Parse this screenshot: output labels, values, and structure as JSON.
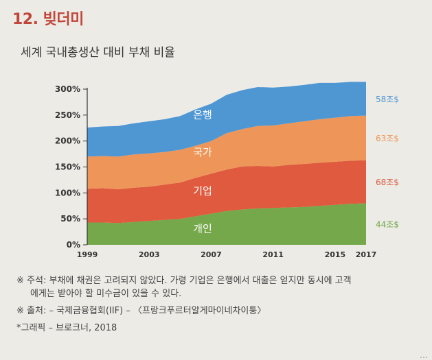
{
  "header": {
    "section_title": "12. 빚더미",
    "chart_title": "세계 국내총생산 대비 부채 비율"
  },
  "chart_data": {
    "type": "area",
    "stacked": true,
    "x": [
      1999,
      2000,
      2001,
      2002,
      2003,
      2004,
      2005,
      2006,
      2007,
      2008,
      2009,
      2010,
      2011,
      2012,
      2013,
      2014,
      2015,
      2016,
      2017
    ],
    "x_tick_labels": [
      "1999",
      "2003",
      "2007",
      "2011",
      "2015",
      "2017"
    ],
    "y_tick_labels": [
      "0%",
      "50%",
      "100%",
      "150%",
      "200%",
      "250%",
      "300%"
    ],
    "ylim": [
      0,
      300
    ],
    "series": [
      {
        "name": "개인",
        "color": "#74a84a",
        "values": [
          43,
          43,
          42,
          44,
          46,
          48,
          50,
          55,
          60,
          65,
          68,
          70,
          71,
          72,
          73,
          75,
          77,
          79,
          80
        ]
      },
      {
        "name": "기업",
        "color": "#df5a3e",
        "values": [
          65,
          66,
          65,
          66,
          66,
          68,
          70,
          74,
          77,
          80,
          83,
          82,
          80,
          82,
          83,
          83,
          83,
          83,
          83
        ]
      },
      {
        "name": "국가",
        "color": "#ee9659",
        "values": [
          62,
          62,
          63,
          64,
          64,
          63,
          63,
          62,
          63,
          70,
          72,
          77,
          79,
          80,
          82,
          84,
          85,
          86,
          86
        ]
      },
      {
        "name": "은행",
        "color": "#4f97d3",
        "values": [
          56,
          57,
          59,
          60,
          62,
          63,
          65,
          70,
          72,
          74,
          75,
          75,
          73,
          71,
          70,
          70,
          67,
          66,
          65
        ]
      }
    ],
    "right_labels": [
      "58조$",
      "63조$",
      "68조$",
      "44조$"
    ]
  },
  "notes": {
    "note1_line1": "※ 주석: 부채에 채권은 고려되지 않았다. 가령 기업은 은행에서 대출은 얻지만 동시에 고객",
    "note1_line2": "에게는 받아야 할 미수금이 있을 수 있다.",
    "note2": "※ 출처: – 국제금융협회(IIF)   – 〈프랑크푸르터알게마이네차이퉁〉",
    "note3": "*그래픽 – 브로크너, 2018"
  }
}
